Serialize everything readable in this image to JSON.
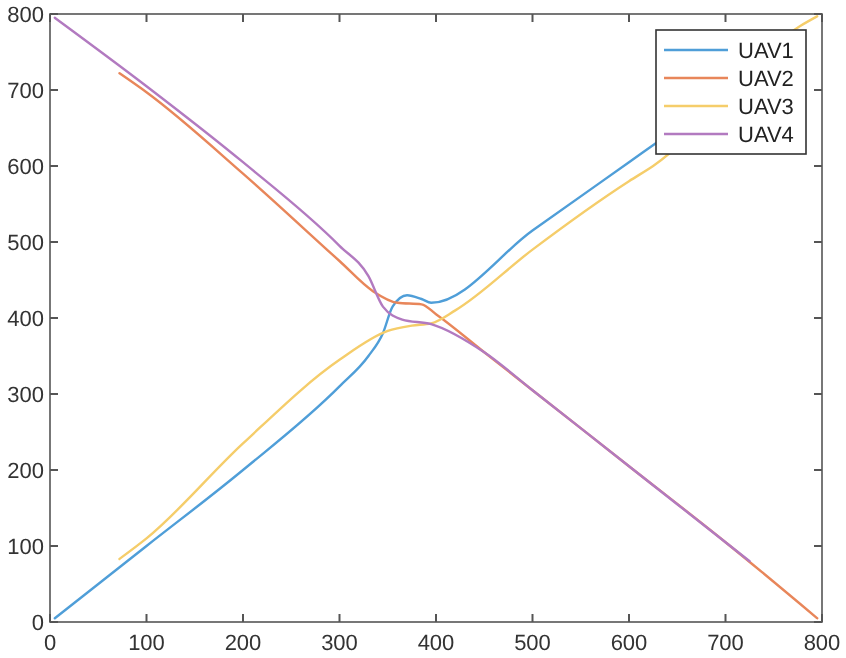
{
  "chart_data": {
    "type": "line",
    "xlim": [
      0,
      800
    ],
    "ylim": [
      0,
      800
    ],
    "xticks": [
      0,
      100,
      200,
      300,
      400,
      500,
      600,
      700,
      800
    ],
    "yticks": [
      0,
      100,
      200,
      300,
      400,
      500,
      600,
      700,
      800
    ],
    "grid": false,
    "legend": "top right",
    "marker": "none",
    "line_style": "solid",
    "series": [
      {
        "name": "UAV1",
        "color": "#4f9ed8",
        "x": [
          5,
          100,
          200,
          300,
          330,
          345,
          355,
          370,
          385,
          395,
          500,
          600,
          630
        ],
        "values": [
          5,
          100,
          200,
          310,
          350,
          380,
          415,
          430,
          425,
          420,
          515,
          605,
          632
        ]
      },
      {
        "name": "UAV2",
        "color": "#e8865a",
        "x": [
          72,
          100,
          200,
          300,
          335,
          360,
          385,
          400,
          450,
          500,
          600,
          700,
          795
        ],
        "values": [
          722,
          697,
          590,
          475,
          435,
          420,
          418,
          405,
          355,
          305,
          205,
          105,
          5
        ]
      },
      {
        "name": "UAV3",
        "color": "#f5cd6a",
        "x": [
          72,
          100,
          200,
          300,
          350,
          375,
          395,
          420,
          500,
          600,
          625,
          777,
          795
        ],
        "values": [
          83,
          110,
          235,
          345,
          383,
          390,
          393,
          410,
          490,
          580,
          600,
          784,
          797
        ]
      },
      {
        "name": "UAV4",
        "color": "#b27ac0",
        "x": [
          5,
          100,
          200,
          300,
          330,
          345,
          365,
          395,
          450,
          500,
          600,
          700,
          725
        ],
        "values": [
          795,
          705,
          605,
          495,
          455,
          415,
          398,
          392,
          355,
          305,
          205,
          105,
          80
        ]
      }
    ]
  }
}
